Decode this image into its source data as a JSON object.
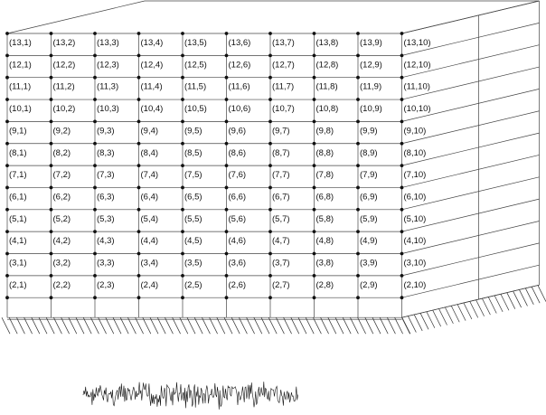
{
  "structure": {
    "rows": 13,
    "cols": 10,
    "label_start_row": 2
  },
  "node_labels": [
    [
      "(2,1)",
      "(2,2)",
      "(2,3)",
      "(2,4)",
      "(2,5)",
      "(2,6)",
      "(2,7)",
      "(2,8)",
      "(2,9)",
      "(2,10)"
    ],
    [
      "(3,1)",
      "(3,2)",
      "(3,3)",
      "(3,4)",
      "(3,5)",
      "(3,6)",
      "(3,7)",
      "(3,8)",
      "(3,9)",
      "(3,10)"
    ],
    [
      "(4,1)",
      "(4,2)",
      "(4,3)",
      "(4,4)",
      "(4,5)",
      "(4,6)",
      "(4,7)",
      "(4,8)",
      "(4,9)",
      "(4,10)"
    ],
    [
      "(5,1)",
      "(5,2)",
      "(5,3)",
      "(5,4)",
      "(5,5)",
      "(5,6)",
      "(5,7)",
      "(5,8)",
      "(5,9)",
      "(5,10)"
    ],
    [
      "(6,1)",
      "(6,2)",
      "(6,3)",
      "(6,4)",
      "(6,5)",
      "(6,6)",
      "(6,7)",
      "(6,8)",
      "(6,9)",
      "(6,10)"
    ],
    [
      "(7,1)",
      "(7,2)",
      "(7,3)",
      "(7,4)",
      "(7,5)",
      "(7,6)",
      "(7,7)",
      "(7,8)",
      "(7,9)",
      "(7,10)"
    ],
    [
      "(8,1)",
      "(8,2)",
      "(8,3)",
      "(8,4)",
      "(8,5)",
      "(8,6)",
      "(8,7)",
      "(8,8)",
      "(8,9)",
      "(8,10)"
    ],
    [
      "(9,1)",
      "(9,2)",
      "(9,3)",
      "(9,4)",
      "(9,5)",
      "(9,6)",
      "(9,7)",
      "(9,8)",
      "(9,9)",
      "(9,10)"
    ],
    [
      "(10,1)",
      "(10,2)",
      "(10,3)",
      "(10,4)",
      "(10,5)",
      "(10,6)",
      "(10,7)",
      "(10,8)",
      "(10,9)",
      "(10,10)"
    ],
    [
      "(11,1)",
      "(11,2)",
      "(11,3)",
      "(11,4)",
      "(11,5)",
      "(11,6)",
      "(11,7)",
      "(11,8)",
      "(11,9)",
      "(11,10)"
    ],
    [
      "(12,1)",
      "(12,2)",
      "(12,3)",
      "(12,4)",
      "(12,5)",
      "(12,6)",
      "(12,7)",
      "(12,8)",
      "(12,9)",
      "(12,10)"
    ],
    [
      "(13,1)",
      "(13,2)",
      "(13,3)",
      "(13,4)",
      "(13,5)",
      "(13,6)",
      "(13,7)",
      "(13,8)",
      "(13,9)",
      "(13,10)"
    ]
  ],
  "colors": {
    "line": "#444444",
    "node": "#111111",
    "text": "#111111",
    "background": "#ffffff"
  },
  "icons": {
    "ground": "ground-hatch",
    "excitation": "excitation-signal"
  }
}
